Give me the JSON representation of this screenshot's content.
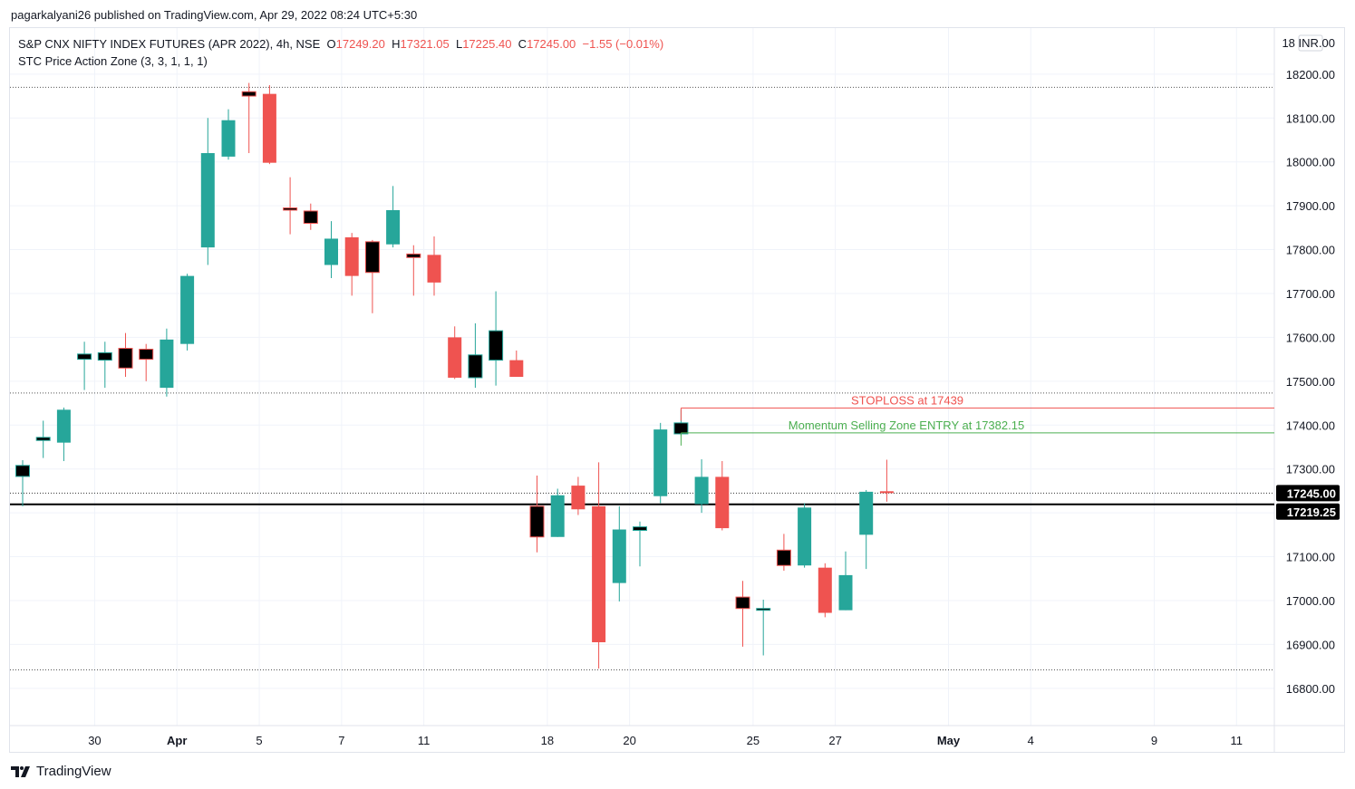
{
  "header": {
    "publisher_line": "pagarkalyani26 published on TradingView.com, Apr 29, 2022 08:24 UTC+5:30"
  },
  "legend": {
    "symbol": "S&P CNX NIFTY INDEX FUTURES (APR 2022), 4h, NSE",
    "o_label": "O",
    "o_value": "17249.20",
    "h_label": "H",
    "h_value": "17321.05",
    "l_label": "L",
    "l_value": "17225.40",
    "c_label": "C",
    "c_value": "17245.00",
    "change": "−1.55 (−0.01%)",
    "indicator": "STC Price Action Zone (3, 3, 1, 1, 1)"
  },
  "brand": {
    "label": "TradingView"
  },
  "colors": {
    "up": "#26a69a",
    "down": "#ef5350",
    "neutral": "#000000",
    "stoploss": "#ef5350",
    "entry": "#4caf50"
  },
  "chart_data": {
    "type": "candlestick",
    "currency_label": "18 INR.00",
    "price_labels": [
      "18200.00",
      "18100.00",
      "18000.00",
      "17900.00",
      "17800.00",
      "17700.00",
      "17600.00",
      "17500.00",
      "17400.00",
      "17300.00",
      "17100.00",
      "17000.00",
      "16900.00",
      "16800.00"
    ],
    "price_ticks": [
      18200,
      18100,
      18000,
      17900,
      17800,
      17700,
      17600,
      17500,
      17400,
      17300,
      17100,
      17000,
      16900,
      16800
    ],
    "y_range": [
      16715,
      18305
    ],
    "time_labels": [
      {
        "label": "30",
        "bold": false,
        "index": 3.5
      },
      {
        "label": "Apr",
        "bold": true,
        "index": 7.5
      },
      {
        "label": "5",
        "bold": false,
        "index": 11.5
      },
      {
        "label": "7",
        "bold": false,
        "index": 15.5
      },
      {
        "label": "11",
        "bold": false,
        "index": 19.5
      },
      {
        "label": "18",
        "bold": false,
        "index": 25.5
      },
      {
        "label": "20",
        "bold": false,
        "index": 29.5
      },
      {
        "label": "25",
        "bold": false,
        "index": 35.5
      },
      {
        "label": "27",
        "bold": false,
        "index": 39.5
      },
      {
        "label": "May",
        "bold": true,
        "index": 45
      },
      {
        "label": "4",
        "bold": false,
        "index": 49
      },
      {
        "label": "9",
        "bold": false,
        "index": 55
      },
      {
        "label": "11",
        "bold": false,
        "index": 59
      }
    ],
    "candles": [
      {
        "o": 17283,
        "h": 17320,
        "l": 17215,
        "c": 17308,
        "z": "n"
      },
      {
        "o": 17365,
        "h": 17410,
        "l": 17325,
        "c": 17372,
        "z": "n"
      },
      {
        "o": 17360,
        "h": 17440,
        "l": 17318,
        "c": 17435,
        "z": "u"
      },
      {
        "o": 17550,
        "h": 17590,
        "l": 17480,
        "c": 17562,
        "z": "n"
      },
      {
        "o": 17548,
        "h": 17590,
        "l": 17485,
        "c": 17565,
        "z": "n"
      },
      {
        "o": 17575,
        "h": 17610,
        "l": 17510,
        "c": 17530,
        "z": "n"
      },
      {
        "o": 17573,
        "h": 17585,
        "l": 17500,
        "c": 17550,
        "z": "n"
      },
      {
        "o": 17485,
        "h": 17620,
        "l": 17465,
        "c": 17595,
        "z": "u"
      },
      {
        "o": 17585,
        "h": 17745,
        "l": 17570,
        "c": 17740,
        "z": "u"
      },
      {
        "o": 17805,
        "h": 18100,
        "l": 17765,
        "c": 18020,
        "z": "u"
      },
      {
        "o": 18012,
        "h": 18120,
        "l": 18005,
        "c": 18095,
        "z": "u"
      },
      {
        "o": 18160,
        "h": 18180,
        "l": 18020,
        "c": 18150,
        "z": "n"
      },
      {
        "o": 18155,
        "h": 18175,
        "l": 17995,
        "c": 17998,
        "z": "d"
      },
      {
        "o": 17895,
        "h": 17965,
        "l": 17835,
        "c": 17890,
        "z": "n"
      },
      {
        "o": 17888,
        "h": 17905,
        "l": 17845,
        "c": 17860,
        "z": "n"
      },
      {
        "o": 17765,
        "h": 17865,
        "l": 17735,
        "c": 17825,
        "z": "u"
      },
      {
        "o": 17828,
        "h": 17838,
        "l": 17695,
        "c": 17740,
        "z": "d"
      },
      {
        "o": 17818,
        "h": 17822,
        "l": 17655,
        "c": 17748,
        "z": "n"
      },
      {
        "o": 17812,
        "h": 17945,
        "l": 17805,
        "c": 17890,
        "z": "u"
      },
      {
        "o": 17790,
        "h": 17810,
        "l": 17695,
        "c": 17782,
        "z": "n"
      },
      {
        "o": 17788,
        "h": 17830,
        "l": 17695,
        "c": 17725,
        "z": "d"
      },
      {
        "o": 17600,
        "h": 17625,
        "l": 17505,
        "c": 17508,
        "z": "d"
      },
      {
        "o": 17508,
        "h": 17632,
        "l": 17485,
        "c": 17560,
        "z": "n"
      },
      {
        "o": 17548,
        "h": 17705,
        "l": 17490,
        "c": 17615,
        "z": "n"
      },
      {
        "o": 17548,
        "h": 17570,
        "l": 17510,
        "c": 17510,
        "z": "d"
      },
      {
        "o": 17215,
        "h": 17285,
        "l": 17110,
        "c": 17145,
        "z": "n"
      },
      {
        "o": 17145,
        "h": 17255,
        "l": 17145,
        "c": 17240,
        "z": "u"
      },
      {
        "o": 17262,
        "h": 17282,
        "l": 17195,
        "c": 17208,
        "z": "d"
      },
      {
        "o": 17215,
        "h": 17315,
        "l": 16845,
        "c": 16905,
        "z": "d"
      },
      {
        "o": 17040,
        "h": 17215,
        "l": 16998,
        "c": 17162,
        "z": "u"
      },
      {
        "o": 17160,
        "h": 17180,
        "l": 17078,
        "c": 17168,
        "z": "n"
      },
      {
        "o": 17238,
        "h": 17405,
        "l": 17222,
        "c": 17390,
        "z": "u"
      },
      {
        "o": 17380,
        "h": 17435,
        "l": 17375,
        "c": 17405,
        "z": "n"
      },
      {
        "o": 17220,
        "h": 17322,
        "l": 17200,
        "c": 17282,
        "z": "u"
      },
      {
        "o": 17282,
        "h": 17318,
        "l": 17160,
        "c": 17165,
        "z": "d"
      },
      {
        "o": 17008,
        "h": 17045,
        "l": 16895,
        "c": 16982,
        "z": "n"
      },
      {
        "o": 16978,
        "h": 17002,
        "l": 16875,
        "c": 16982,
        "z": "n"
      },
      {
        "o": 17115,
        "h": 17152,
        "l": 17068,
        "c": 17080,
        "z": "n"
      },
      {
        "o": 17080,
        "h": 17222,
        "l": 17075,
        "c": 17212,
        "z": "u"
      },
      {
        "o": 17075,
        "h": 17085,
        "l": 16962,
        "c": 16972,
        "z": "d"
      },
      {
        "o": 16978,
        "h": 17112,
        "l": 16978,
        "c": 17058,
        "z": "u"
      },
      {
        "o": 17150,
        "h": 17252,
        "l": 17072,
        "c": 17248,
        "z": "u"
      },
      {
        "o": 17249.2,
        "h": 17321.05,
        "l": 17225.4,
        "c": 17245,
        "z": "d"
      }
    ],
    "dotted_levels": [
      18170,
      17473,
      16842
    ],
    "horizontal_lines": [
      {
        "price": 17439,
        "label": "STOPLOSS at 17439",
        "color": "#ef5350",
        "from_index": 32
      },
      {
        "price": 17382.15,
        "label": "Momentum Selling Zone ENTRY at 17382.15",
        "color": "#4caf50",
        "from_index": 32
      }
    ],
    "current_price": {
      "price": 17245.0,
      "label": "17245.00"
    },
    "reference_line": {
      "price": 17219.25,
      "label": "17219.25"
    }
  }
}
